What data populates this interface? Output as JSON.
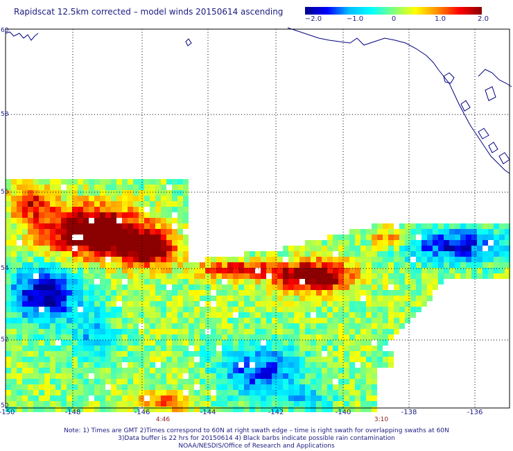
{
  "title": "Rapidscat 12.5km corrected – model winds 20150614 ascending",
  "colorbar": {
    "labels": [
      "−2.0",
      "−1.0",
      "0",
      "1.0",
      "2.0"
    ],
    "range": [
      -2.0,
      2.0
    ],
    "stops": [
      "#00008b",
      "#0000ff",
      "#00bfff",
      "#00ffff",
      "#7fff7f",
      "#ffff00",
      "#ff8c00",
      "#ff0000",
      "#8b0000"
    ]
  },
  "axes": {
    "lat_ticks": [
      "60",
      "58",
      "56",
      "54",
      "52",
      "50"
    ],
    "lon_ticks": [
      "-150",
      "-148",
      "-146",
      "-144",
      "-142",
      "-140",
      "-138",
      "-136"
    ],
    "lon_range": [
      -150,
      -135
    ],
    "lat_range": [
      50,
      60
    ]
  },
  "times": [
    {
      "label": "4:46",
      "lon": -146
    },
    {
      "label": "3:10",
      "lon": -139.5
    }
  ],
  "notes": [
    "Note: 1) Times are GMT 2)Times correspond to 60N at right swath edge – time is right swath for overlapping swaths at 60N",
    "3)Data buffer is 22 hrs for 20150614 4) Black barbs indicate possible rain contamination",
    "NOAA/NESDIS/Office of Research and Applications"
  ],
  "colors": {
    "text": "#1a1a80",
    "coast": "#000080",
    "grid": "#000000",
    "time": "#8b1a1a"
  }
}
